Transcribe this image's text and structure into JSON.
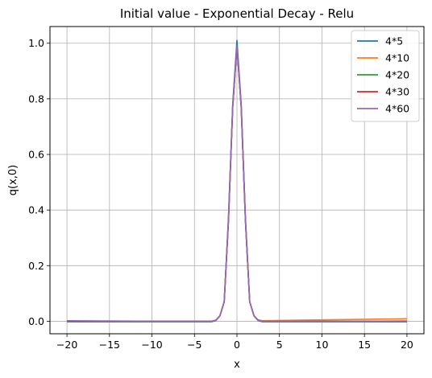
{
  "chart_data": {
    "type": "line",
    "title": "Initial value - Exponential Decay - Relu",
    "xlabel": "x",
    "ylabel": "q(x,0)",
    "xlim": [
      -22,
      22
    ],
    "ylim": [
      -0.045,
      1.06
    ],
    "xticks": [
      -20,
      -15,
      -10,
      -5,
      0,
      5,
      10,
      15,
      20
    ],
    "xtick_labels": [
      "−20",
      "−15",
      "−10",
      "−5",
      "0",
      "5",
      "10",
      "15",
      "20"
    ],
    "yticks": [
      0.0,
      0.2,
      0.4,
      0.6,
      0.8,
      1.0
    ],
    "ytick_labels": [
      "0.0",
      "0.2",
      "0.4",
      "0.6",
      "0.8",
      "1.0"
    ],
    "grid": true,
    "legend_position": "top-right",
    "series": [
      {
        "name": "4*5",
        "color": "#1f77b4",
        "x": [
          -20,
          -15,
          -10,
          -5,
          -3,
          -2.5,
          -2,
          -1.5,
          -1,
          -0.5,
          0,
          0.5,
          1,
          1.5,
          2,
          2.5,
          3,
          5,
          10,
          15,
          20
        ],
        "y": [
          -0.002,
          -0.002,
          -0.002,
          -0.002,
          -0.002,
          0.002,
          0.02,
          0.07,
          0.37,
          0.78,
          1.01,
          0.78,
          0.37,
          0.07,
          0.02,
          0.002,
          -0.002,
          -0.002,
          -0.002,
          -0.002,
          -0.002
        ]
      },
      {
        "name": "4*10",
        "color": "#ff7f0e",
        "x": [
          -20,
          -15,
          -10,
          -5,
          -3,
          -2.5,
          -2,
          -1.5,
          -1,
          -0.5,
          0,
          0.5,
          1,
          1.5,
          2,
          2.5,
          3,
          5,
          10,
          15,
          20
        ],
        "y": [
          0.0,
          0.0,
          0.0,
          0.0,
          0.0,
          0.004,
          0.02,
          0.07,
          0.36,
          0.77,
          0.99,
          0.77,
          0.36,
          0.07,
          0.02,
          0.005,
          0.002,
          0.003,
          0.005,
          0.007,
          0.009
        ]
      },
      {
        "name": "4*20",
        "color": "#2ca02c",
        "x": [
          -20,
          -15,
          -10,
          -5,
          -3,
          -2.5,
          -2,
          -1.5,
          -1,
          -0.5,
          0,
          0.5,
          1,
          1.5,
          2,
          2.5,
          3,
          5,
          10,
          15,
          20
        ],
        "y": [
          0.0,
          0.0,
          0.0,
          0.0,
          0.0,
          0.003,
          0.02,
          0.07,
          0.36,
          0.77,
          0.99,
          0.77,
          0.36,
          0.07,
          0.02,
          0.003,
          0.0,
          0.0,
          0.0,
          0.0,
          0.0
        ]
      },
      {
        "name": "4*30",
        "color": "#d62728",
        "x": [
          -20,
          -15,
          -10,
          -5,
          -3,
          -2.5,
          -2,
          -1.5,
          -1,
          -0.5,
          0,
          0.5,
          1,
          1.5,
          2,
          2.5,
          3,
          5,
          10,
          15,
          20
        ],
        "y": [
          0.0,
          0.0,
          0.0,
          0.0,
          0.0,
          0.003,
          0.02,
          0.07,
          0.36,
          0.77,
          0.99,
          0.77,
          0.36,
          0.07,
          0.02,
          0.003,
          0.0,
          0.0,
          0.0,
          0.0,
          0.0
        ]
      },
      {
        "name": "4*60",
        "color": "#9467bd",
        "x": [
          -20,
          -15,
          -10,
          -5,
          -3,
          -2.5,
          -2,
          -1.5,
          -1,
          -0.5,
          0,
          0.5,
          1,
          1.5,
          2,
          2.5,
          3,
          5,
          10,
          15,
          20
        ],
        "y": [
          0.002,
          0.001,
          0.0,
          0.0,
          0.0,
          0.003,
          0.02,
          0.07,
          0.36,
          0.77,
          0.99,
          0.77,
          0.36,
          0.07,
          0.02,
          0.003,
          0.0,
          0.0,
          0.0,
          0.0,
          0.001
        ]
      }
    ]
  }
}
